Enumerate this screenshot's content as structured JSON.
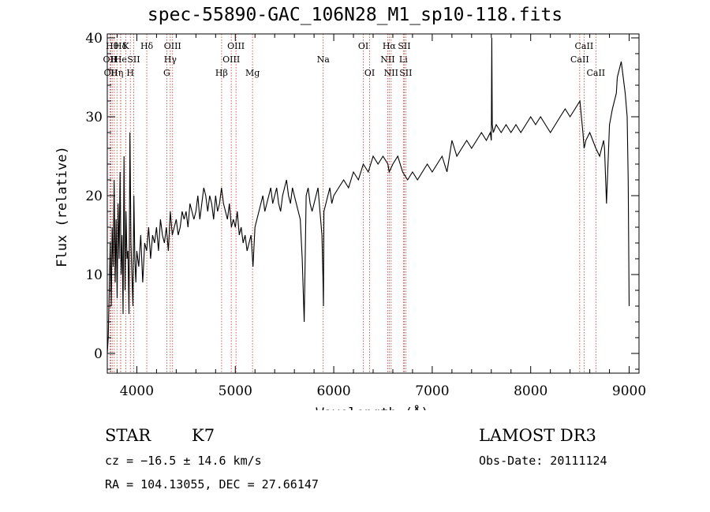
{
  "chart_data": {
    "type": "line",
    "title": "spec-55890-GAC_106N28_M1_sp10-118.fits",
    "xlabel": "Wavelength (Å)",
    "ylabel": "Flux (relative)",
    "xlim": [
      3700,
      9100
    ],
    "ylim": [
      -2.5,
      40.5
    ],
    "xticks": [
      4000,
      5000,
      6000,
      7000,
      8000,
      9000
    ],
    "yticks": [
      0,
      10,
      20,
      30,
      40
    ],
    "grid": false,
    "series": [
      {
        "color": "#000000",
        "x": [
          3700,
          3710,
          3720,
          3730,
          3740,
          3750,
          3760,
          3770,
          3780,
          3790,
          3800,
          3810,
          3820,
          3830,
          3840,
          3850,
          3860,
          3870,
          3880,
          3890,
          3900,
          3910,
          3920,
          3930,
          3940,
          3950,
          3960,
          3970,
          3980,
          3990,
          4000,
          4020,
          4040,
          4060,
          4080,
          4100,
          4120,
          4140,
          4160,
          4180,
          4200,
          4220,
          4240,
          4260,
          4280,
          4300,
          4320,
          4340,
          4360,
          4380,
          4400,
          4420,
          4440,
          4460,
          4480,
          4500,
          4520,
          4540,
          4560,
          4580,
          4600,
          4620,
          4640,
          4660,
          4680,
          4700,
          4720,
          4740,
          4760,
          4780,
          4800,
          4820,
          4840,
          4860,
          4880,
          4900,
          4920,
          4940,
          4960,
          4980,
          5000,
          5020,
          5040,
          5060,
          5080,
          5100,
          5120,
          5140,
          5160,
          5180,
          5200,
          5220,
          5240,
          5260,
          5280,
          5300,
          5320,
          5340,
          5360,
          5380,
          5400,
          5420,
          5440,
          5460,
          5480,
          5500,
          5520,
          5540,
          5560,
          5580,
          5600,
          5620,
          5640,
          5660,
          5680,
          5700,
          5720,
          5740,
          5760,
          5780,
          5800,
          5820,
          5840,
          5860,
          5880,
          5890,
          5895,
          5900,
          5920,
          5940,
          5960,
          5980,
          6000,
          6050,
          6100,
          6150,
          6200,
          6250,
          6300,
          6350,
          6400,
          6450,
          6500,
          6550,
          6563,
          6600,
          6650,
          6700,
          6750,
          6800,
          6850,
          6900,
          6950,
          7000,
          7050,
          7100,
          7150,
          7200,
          7250,
          7300,
          7350,
          7400,
          7450,
          7500,
          7550,
          7590,
          7600,
          7605,
          7610,
          7620,
          7650,
          7700,
          7750,
          7800,
          7850,
          7900,
          7950,
          8000,
          8050,
          8100,
          8150,
          8200,
          8250,
          8300,
          8350,
          8400,
          8450,
          8500,
          8530,
          8542,
          8560,
          8600,
          8662,
          8700,
          8740,
          8750,
          8770,
          8800,
          8830,
          8850,
          8870,
          8880,
          8900,
          8920,
          8940,
          8960,
          8980,
          8990,
          9000
        ],
        "y": [
          0,
          2,
          8,
          14,
          6,
          16,
          11,
          22,
          9,
          17,
          7,
          19,
          12,
          23,
          10,
          15,
          5,
          25,
          8,
          18,
          12,
          13,
          5,
          28,
          14,
          10,
          6,
          20,
          12,
          9,
          13,
          11,
          15,
          9,
          14,
          13,
          16,
          12,
          15,
          14,
          16,
          13,
          17,
          15,
          14,
          16,
          13,
          18,
          15,
          16,
          17,
          15,
          16,
          18,
          17,
          18,
          16,
          19,
          18,
          17,
          18,
          20,
          17,
          19,
          21,
          20,
          18,
          20,
          19,
          17,
          20,
          18,
          19,
          21,
          19,
          18,
          17,
          19,
          16,
          17,
          16,
          18,
          15,
          16,
          14,
          15,
          13,
          14,
          15,
          11,
          16,
          17,
          18,
          19,
          20,
          18,
          19,
          20,
          21,
          19,
          20,
          21,
          19,
          18,
          20,
          21,
          22,
          20,
          19,
          21,
          20,
          19,
          18,
          17,
          12,
          4,
          20,
          21,
          19,
          18,
          19,
          20,
          21,
          18,
          15,
          10,
          6,
          18,
          19,
          20,
          21,
          19,
          20,
          21,
          22,
          21,
          23,
          22,
          24,
          23,
          25,
          24,
          25,
          24,
          23,
          24,
          25,
          23,
          22,
          23,
          22,
          23,
          24,
          23,
          24,
          25,
          23,
          27,
          25,
          26,
          27,
          26,
          27,
          28,
          27,
          28,
          27,
          40,
          29,
          28,
          29,
          28,
          29,
          28,
          29,
          28,
          29,
          30,
          29,
          30,
          29,
          28,
          29,
          30,
          31,
          30,
          31,
          32,
          28,
          26,
          27,
          28,
          26,
          25,
          27,
          26,
          19,
          29,
          31,
          32,
          33,
          35,
          36,
          37,
          35,
          33,
          30,
          22,
          6
        ]
      }
    ],
    "lines": [
      {
        "wave": 3727,
        "label": "OII",
        "row": 2
      },
      {
        "wave": 3736,
        "label": "OII",
        "row": 3
      },
      {
        "wave": 3750,
        "label": "Hθ",
        "row": 1
      },
      {
        "wave": 3771,
        "label": "H",
        "row": 2
      },
      {
        "wave": 3798,
        "label": "Hη",
        "row": 3
      },
      {
        "wave": 3836,
        "label": "Hδ",
        "row": 1
      },
      {
        "wave": 3835,
        "label": "He",
        "row": 2
      },
      {
        "wave": 3889,
        "label": "K",
        "row": 1
      },
      {
        "wave": 3934,
        "label": "H",
        "row": 3
      },
      {
        "wave": 3968,
        "label": "SII",
        "row": 2
      },
      {
        "wave": 4101,
        "label": "Hδ",
        "row": 1
      },
      {
        "wave": 4304,
        "label": "G",
        "row": 3
      },
      {
        "wave": 4340,
        "label": "Hγ",
        "row": 2
      },
      {
        "wave": 4363,
        "label": "OIII",
        "row": 1
      },
      {
        "wave": 4861,
        "label": "Hβ",
        "row": 3
      },
      {
        "wave": 4959,
        "label": "OIII",
        "row": 2
      },
      {
        "wave": 5007,
        "label": "OIII",
        "row": 1
      },
      {
        "wave": 5175,
        "label": "Mg",
        "row": 3
      },
      {
        "wave": 5893,
        "label": "Na",
        "row": 2
      },
      {
        "wave": 6300,
        "label": "OI",
        "row": 1
      },
      {
        "wave": 6364,
        "label": "OI",
        "row": 3
      },
      {
        "wave": 6548,
        "label": "NII",
        "row": 2
      },
      {
        "wave": 6563,
        "label": "Hα",
        "row": 1
      },
      {
        "wave": 6583,
        "label": "NII",
        "row": 3
      },
      {
        "wave": 6707,
        "label": "Li",
        "row": 2
      },
      {
        "wave": 6716,
        "label": "SII",
        "row": 1
      },
      {
        "wave": 6731,
        "label": "SII",
        "row": 3
      },
      {
        "wave": 8498,
        "label": "CaII",
        "row": 2
      },
      {
        "wave": 8542,
        "label": "CaII",
        "row": 1
      },
      {
        "wave": 8662,
        "label": "CaII",
        "row": 3
      }
    ]
  },
  "info": {
    "object_class": "STAR",
    "subclass": "K7",
    "survey": "LAMOST DR3",
    "redshift": "cz = −16.5 ± 14.6 km/s",
    "obs_date": "Obs-Date: 20111124",
    "coords": "RA = 104.13055, DEC =  27.66147"
  }
}
